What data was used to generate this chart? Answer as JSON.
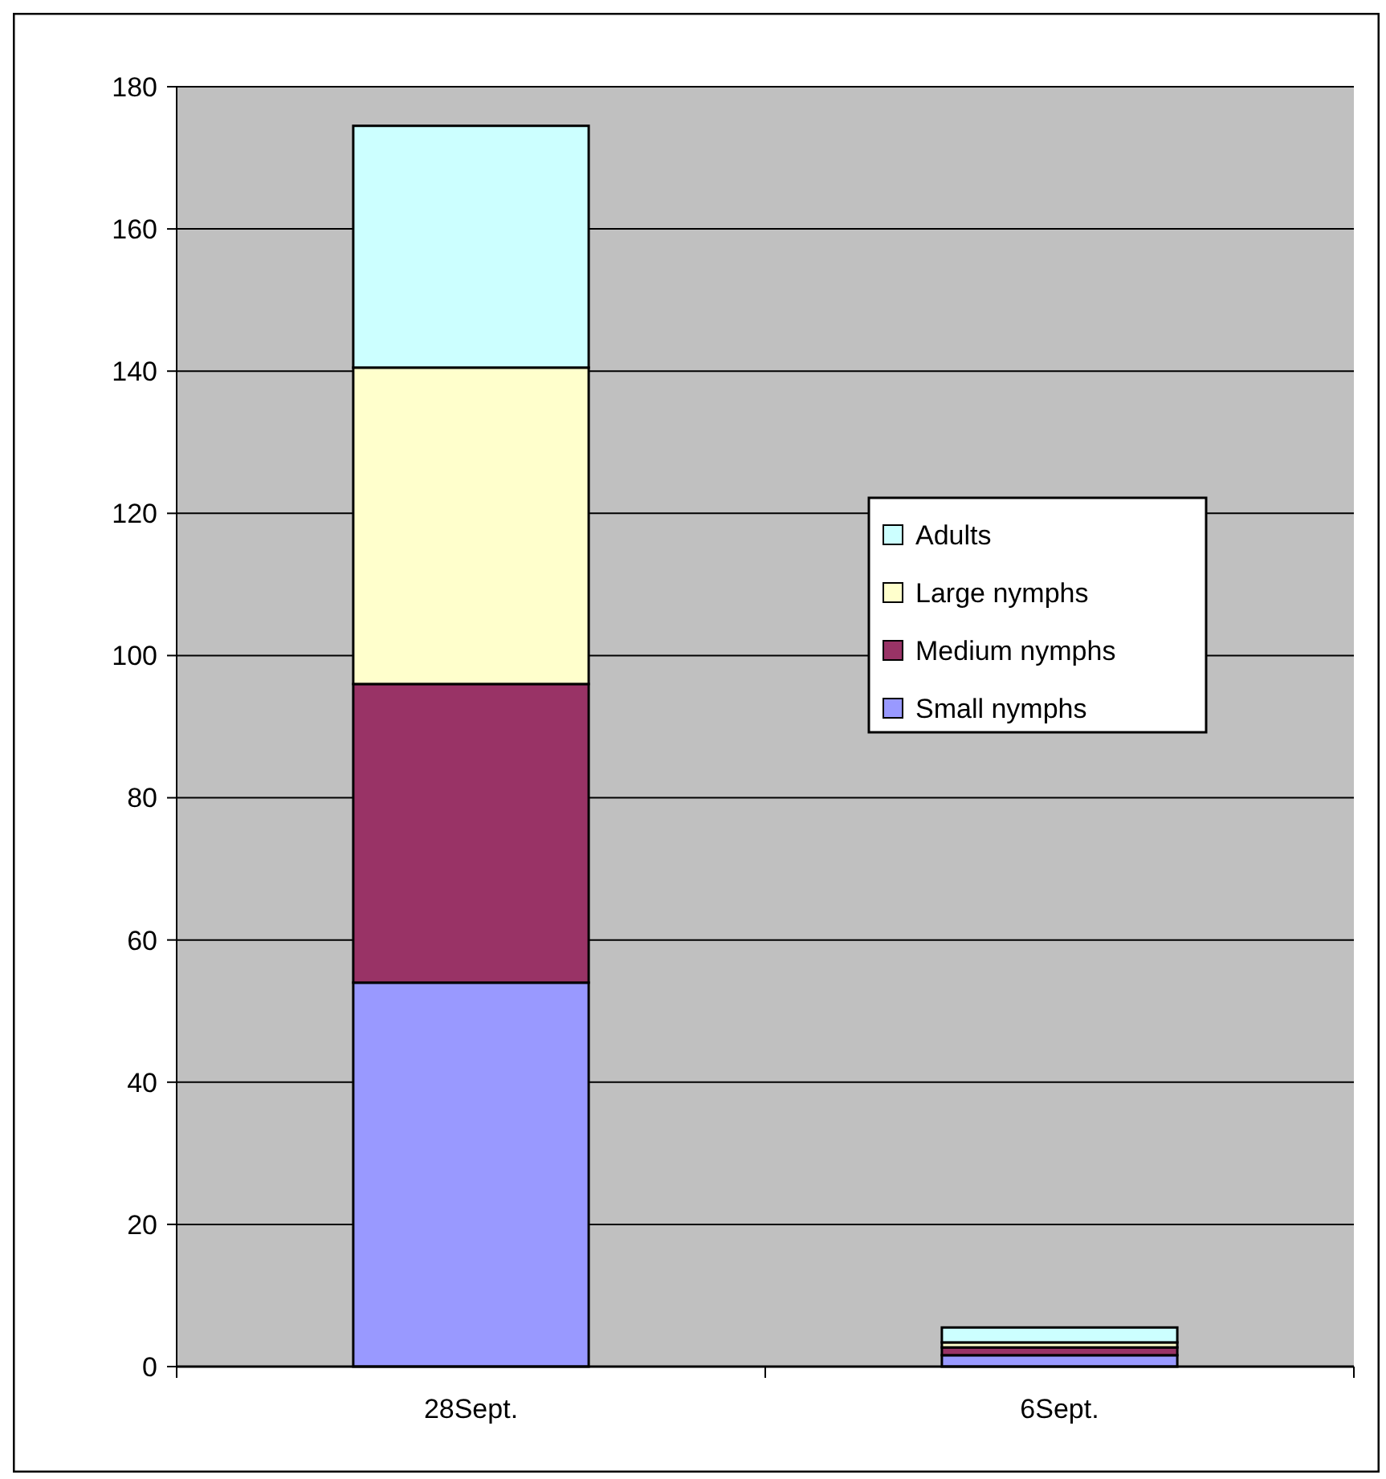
{
  "chart_data": {
    "type": "bar",
    "stacked": true,
    "categories": [
      "28Sept.",
      "6Sept."
    ],
    "series": [
      {
        "name": "Small nymphs",
        "color": "#9999ff",
        "values": [
          54,
          1.6
        ]
      },
      {
        "name": "Medium nymphs",
        "color": "#993366",
        "values": [
          42,
          1.1
        ]
      },
      {
        "name": "Large nymphs",
        "color": "#ffffcc",
        "values": [
          44.5,
          0.7
        ]
      },
      {
        "name": "Adults",
        "color": "#ccffff",
        "values": [
          34,
          2.1
        ]
      }
    ],
    "ylim": [
      0,
      180
    ],
    "yticks": [
      0,
      20,
      40,
      60,
      80,
      100,
      120,
      140,
      160,
      180
    ],
    "grid": "y",
    "legend": "right"
  }
}
